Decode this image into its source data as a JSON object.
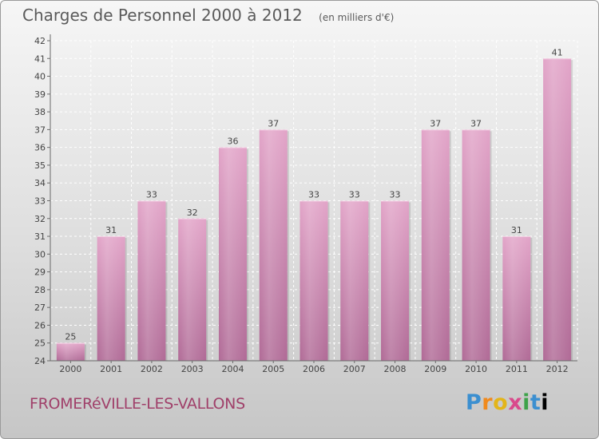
{
  "chart_title": "Charges de Personnel 2000 à 2012",
  "chart_subtitle": "(en milliers d'€)",
  "commune": "FROMERéVILLE-LES-VALLONS",
  "logo_text": "Proxiti",
  "colors": {
    "bar_top": "#e2a4c8",
    "bar_bottom": "#b06a96",
    "axis": "#6a6a6a",
    "label": "#444444",
    "grid": "#ffffff",
    "commune": "#a0406a"
  },
  "chart_data": {
    "type": "bar",
    "title": "Charges de Personnel 2000 à 2012",
    "subtitle": "(en milliers d'€)",
    "xlabel": "",
    "ylabel": "",
    "categories": [
      "2000",
      "2001",
      "2002",
      "2003",
      "2004",
      "2005",
      "2006",
      "2007",
      "2008",
      "2009",
      "2010",
      "2011",
      "2012"
    ],
    "values": [
      25,
      31,
      33,
      32,
      36,
      37,
      33,
      33,
      33,
      37,
      37,
      31,
      41
    ],
    "ylim": [
      24,
      42
    ],
    "yticks": [
      24,
      25,
      26,
      27,
      28,
      29,
      30,
      31,
      32,
      33,
      34,
      35,
      36,
      37,
      38,
      39,
      40,
      41,
      42
    ],
    "grid": true,
    "legend": "none"
  }
}
